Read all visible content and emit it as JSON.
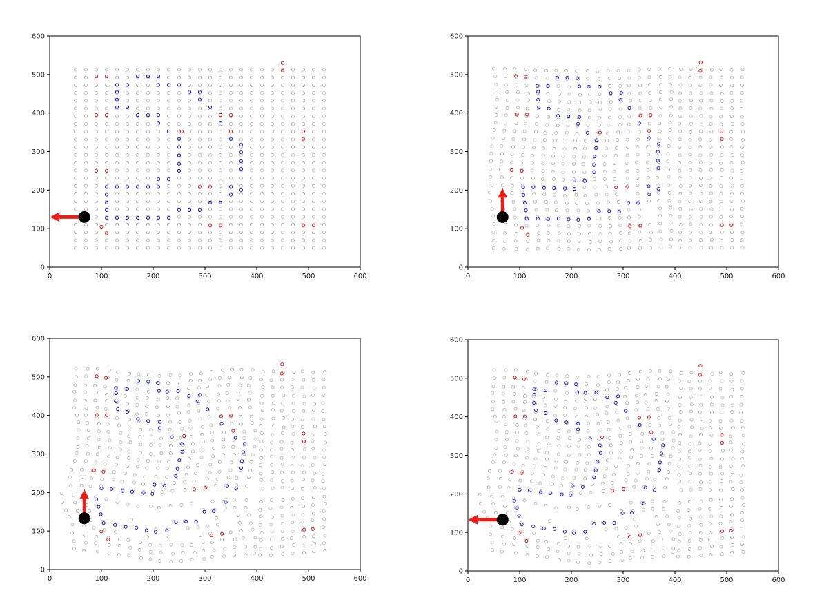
{
  "chart_data": [
    {
      "type": "scatter",
      "xlim": [
        0,
        600
      ],
      "ylim": [
        0,
        600
      ],
      "xticks": [
        "0",
        "100",
        "200",
        "300",
        "400",
        "500",
        "600"
      ],
      "yticks": [
        "0",
        "100",
        "200",
        "300",
        "400",
        "500",
        "600"
      ],
      "grid": false,
      "colors": {
        "background_points": "#b4b4b4",
        "blue_points": "#1f1fd6",
        "red_points": "#e02020",
        "robot": "#000000",
        "arrow": "#e8201c"
      },
      "robot": {
        "x": 67,
        "y": 130,
        "heading": "left"
      },
      "warp": 0,
      "red_points": [
        [
          90,
          495
        ],
        [
          110,
          495
        ],
        [
          90,
          395
        ],
        [
          110,
          395
        ],
        [
          90,
          250
        ],
        [
          110,
          250
        ],
        [
          100,
          105
        ],
        [
          110,
          88
        ],
        [
          255,
          352
        ],
        [
          290,
          208
        ],
        [
          310,
          208
        ],
        [
          310,
          108
        ],
        [
          330,
          108
        ],
        [
          330,
          395
        ],
        [
          350,
          395
        ],
        [
          350,
          352
        ],
        [
          450,
          530
        ],
        [
          450,
          510
        ],
        [
          490,
          352
        ],
        [
          490,
          333
        ],
        [
          490,
          108
        ],
        [
          510,
          108
        ]
      ],
      "blue_points": [
        [
          130,
          473
        ],
        [
          150,
          473
        ],
        [
          130,
          455
        ],
        [
          130,
          435
        ],
        [
          130,
          415
        ],
        [
          150,
          415
        ],
        [
          170,
          495
        ],
        [
          190,
          495
        ],
        [
          210,
          495
        ],
        [
          210,
          473
        ],
        [
          230,
          473
        ],
        [
          250,
          473
        ],
        [
          270,
          455
        ],
        [
          290,
          455
        ],
        [
          290,
          435
        ],
        [
          310,
          415
        ],
        [
          330,
          375
        ],
        [
          170,
          395
        ],
        [
          190,
          395
        ],
        [
          210,
          395
        ],
        [
          210,
          375
        ],
        [
          230,
          352
        ],
        [
          250,
          333
        ],
        [
          250,
          312
        ],
        [
          250,
          290
        ],
        [
          250,
          268
        ],
        [
          250,
          250
        ],
        [
          230,
          228
        ],
        [
          210,
          228
        ],
        [
          210,
          208
        ],
        [
          190,
          208
        ],
        [
          170,
          208
        ],
        [
          150,
          208
        ],
        [
          130,
          208
        ],
        [
          110,
          208
        ],
        [
          110,
          188
        ],
        [
          110,
          168
        ],
        [
          110,
          148
        ],
        [
          110,
          128
        ],
        [
          130,
          128
        ],
        [
          150,
          128
        ],
        [
          170,
          128
        ],
        [
          190,
          128
        ],
        [
          210,
          128
        ],
        [
          230,
          128
        ],
        [
          250,
          148
        ],
        [
          270,
          148
        ],
        [
          290,
          148
        ],
        [
          310,
          168
        ],
        [
          330,
          168
        ],
        [
          350,
          188
        ],
        [
          350,
          208
        ],
        [
          350,
          333
        ],
        [
          370,
          318
        ],
        [
          370,
          298
        ],
        [
          370,
          275
        ],
        [
          370,
          255
        ],
        [
          370,
          200
        ]
      ]
    },
    {
      "type": "scatter",
      "xlim": [
        0,
        600
      ],
      "ylim": [
        0,
        600
      ],
      "xticks": [
        "0",
        "100",
        "200",
        "300",
        "400",
        "500",
        "600"
      ],
      "yticks": [
        "0",
        "100",
        "200",
        "300",
        "400",
        "500",
        "600"
      ],
      "grid": false,
      "colors": {
        "background_points": "#b4b4b4",
        "blue_points": "#1f1fd6",
        "red_points": "#e02020",
        "robot": "#000000",
        "arrow": "#e8201c"
      },
      "robot": {
        "x": 67,
        "y": 130,
        "heading": "up"
      },
      "warp": 1,
      "red_points": [
        [
          90,
          495
        ],
        [
          110,
          495
        ],
        [
          90,
          395
        ],
        [
          110,
          395
        ],
        [
          90,
          250
        ],
        [
          110,
          250
        ],
        [
          100,
          105
        ],
        [
          110,
          88
        ],
        [
          255,
          352
        ],
        [
          290,
          208
        ],
        [
          310,
          208
        ],
        [
          310,
          108
        ],
        [
          330,
          108
        ],
        [
          330,
          395
        ],
        [
          350,
          395
        ],
        [
          350,
          352
        ],
        [
          450,
          530
        ],
        [
          450,
          510
        ],
        [
          490,
          352
        ],
        [
          490,
          333
        ],
        [
          490,
          108
        ],
        [
          510,
          108
        ]
      ],
      "blue_points": [
        [
          130,
          473
        ],
        [
          150,
          473
        ],
        [
          130,
          455
        ],
        [
          130,
          435
        ],
        [
          130,
          415
        ],
        [
          150,
          415
        ],
        [
          170,
          495
        ],
        [
          190,
          495
        ],
        [
          210,
          495
        ],
        [
          210,
          473
        ],
        [
          230,
          473
        ],
        [
          250,
          473
        ],
        [
          270,
          455
        ],
        [
          290,
          455
        ],
        [
          290,
          435
        ],
        [
          310,
          415
        ],
        [
          330,
          375
        ],
        [
          170,
          395
        ],
        [
          190,
          395
        ],
        [
          210,
          395
        ],
        [
          210,
          375
        ],
        [
          230,
          352
        ],
        [
          250,
          333
        ],
        [
          250,
          312
        ],
        [
          250,
          290
        ],
        [
          250,
          268
        ],
        [
          250,
          250
        ],
        [
          230,
          228
        ],
        [
          210,
          228
        ],
        [
          210,
          208
        ],
        [
          190,
          208
        ],
        [
          170,
          208
        ],
        [
          150,
          208
        ],
        [
          130,
          208
        ],
        [
          110,
          208
        ],
        [
          110,
          188
        ],
        [
          110,
          168
        ],
        [
          110,
          148
        ],
        [
          110,
          128
        ],
        [
          130,
          128
        ],
        [
          150,
          128
        ],
        [
          170,
          128
        ],
        [
          190,
          128
        ],
        [
          210,
          128
        ],
        [
          230,
          128
        ],
        [
          250,
          148
        ],
        [
          270,
          148
        ],
        [
          290,
          148
        ],
        [
          310,
          168
        ],
        [
          330,
          168
        ],
        [
          350,
          188
        ],
        [
          350,
          208
        ],
        [
          350,
          333
        ],
        [
          370,
          318
        ],
        [
          370,
          298
        ],
        [
          370,
          275
        ],
        [
          370,
          255
        ],
        [
          370,
          200
        ]
      ]
    },
    {
      "type": "scatter",
      "xlim": [
        0,
        600
      ],
      "ylim": [
        0,
        600
      ],
      "xticks": [
        "0",
        "100",
        "200",
        "300",
        "400",
        "500",
        "600"
      ],
      "yticks": [
        "0",
        "100",
        "200",
        "300",
        "400",
        "500",
        "600"
      ],
      "grid": false,
      "colors": {
        "background_points": "#b4b4b4",
        "blue_points": "#1f1fd6",
        "red_points": "#e02020",
        "robot": "#000000",
        "arrow": "#e8201c"
      },
      "robot": {
        "x": 67,
        "y": 133,
        "heading": "up"
      },
      "warp": 2,
      "red_points": [
        [
          90,
          495
        ],
        [
          110,
          495
        ],
        [
          90,
          395
        ],
        [
          110,
          395
        ],
        [
          90,
          250
        ],
        [
          110,
          250
        ],
        [
          100,
          105
        ],
        [
          110,
          88
        ],
        [
          255,
          352
        ],
        [
          290,
          208
        ],
        [
          310,
          208
        ],
        [
          310,
          108
        ],
        [
          330,
          108
        ],
        [
          330,
          395
        ],
        [
          350,
          395
        ],
        [
          350,
          352
        ],
        [
          450,
          530
        ],
        [
          450,
          510
        ],
        [
          490,
          352
        ],
        [
          490,
          333
        ],
        [
          490,
          108
        ],
        [
          510,
          108
        ]
      ],
      "blue_points": [
        [
          130,
          473
        ],
        [
          150,
          473
        ],
        [
          130,
          455
        ],
        [
          130,
          435
        ],
        [
          130,
          415
        ],
        [
          150,
          415
        ],
        [
          170,
          495
        ],
        [
          190,
          495
        ],
        [
          210,
          495
        ],
        [
          210,
          473
        ],
        [
          230,
          473
        ],
        [
          250,
          473
        ],
        [
          270,
          455
        ],
        [
          290,
          455
        ],
        [
          290,
          435
        ],
        [
          310,
          415
        ],
        [
          330,
          375
        ],
        [
          170,
          395
        ],
        [
          190,
          395
        ],
        [
          210,
          395
        ],
        [
          210,
          375
        ],
        [
          230,
          352
        ],
        [
          250,
          333
        ],
        [
          250,
          312
        ],
        [
          250,
          290
        ],
        [
          250,
          268
        ],
        [
          250,
          250
        ],
        [
          230,
          228
        ],
        [
          210,
          228
        ],
        [
          210,
          208
        ],
        [
          190,
          208
        ],
        [
          170,
          208
        ],
        [
          150,
          208
        ],
        [
          130,
          208
        ],
        [
          110,
          208
        ],
        [
          110,
          188
        ],
        [
          110,
          168
        ],
        [
          110,
          148
        ],
        [
          110,
          128
        ],
        [
          130,
          128
        ],
        [
          150,
          128
        ],
        [
          170,
          128
        ],
        [
          190,
          128
        ],
        [
          210,
          128
        ],
        [
          230,
          128
        ],
        [
          250,
          148
        ],
        [
          270,
          148
        ],
        [
          290,
          148
        ],
        [
          310,
          168
        ],
        [
          330,
          168
        ],
        [
          350,
          188
        ],
        [
          350,
          208
        ],
        [
          350,
          333
        ],
        [
          370,
          318
        ],
        [
          370,
          298
        ],
        [
          370,
          275
        ],
        [
          370,
          255
        ],
        [
          370,
          200
        ]
      ]
    },
    {
      "type": "scatter",
      "xlim": [
        0,
        600
      ],
      "ylim": [
        0,
        600
      ],
      "xticks": [
        "0",
        "100",
        "200",
        "300",
        "400",
        "500",
        "600"
      ],
      "yticks": [
        "0",
        "100",
        "200",
        "300",
        "400",
        "500",
        "600"
      ],
      "grid": false,
      "colors": {
        "background_points": "#b4b4b4",
        "blue_points": "#1f1fd6",
        "red_points": "#e02020",
        "robot": "#000000",
        "arrow": "#e8201c"
      },
      "robot": {
        "x": 67,
        "y": 133,
        "heading": "left"
      },
      "warp": 2,
      "red_points": [
        [
          90,
          495
        ],
        [
          110,
          495
        ],
        [
          90,
          395
        ],
        [
          110,
          395
        ],
        [
          90,
          250
        ],
        [
          110,
          250
        ],
        [
          100,
          105
        ],
        [
          110,
          88
        ],
        [
          255,
          352
        ],
        [
          290,
          208
        ],
        [
          310,
          208
        ],
        [
          310,
          108
        ],
        [
          330,
          108
        ],
        [
          330,
          395
        ],
        [
          350,
          395
        ],
        [
          350,
          352
        ],
        [
          450,
          530
        ],
        [
          450,
          510
        ],
        [
          490,
          352
        ],
        [
          490,
          333
        ],
        [
          490,
          108
        ],
        [
          510,
          108
        ]
      ],
      "blue_points": [
        [
          130,
          473
        ],
        [
          150,
          473
        ],
        [
          130,
          455
        ],
        [
          130,
          435
        ],
        [
          130,
          415
        ],
        [
          150,
          415
        ],
        [
          170,
          495
        ],
        [
          190,
          495
        ],
        [
          210,
          495
        ],
        [
          210,
          473
        ],
        [
          230,
          473
        ],
        [
          250,
          473
        ],
        [
          270,
          455
        ],
        [
          290,
          455
        ],
        [
          290,
          435
        ],
        [
          310,
          415
        ],
        [
          330,
          375
        ],
        [
          170,
          395
        ],
        [
          190,
          395
        ],
        [
          210,
          395
        ],
        [
          210,
          375
        ],
        [
          230,
          352
        ],
        [
          250,
          333
        ],
        [
          250,
          312
        ],
        [
          250,
          290
        ],
        [
          250,
          268
        ],
        [
          250,
          250
        ],
        [
          230,
          228
        ],
        [
          210,
          228
        ],
        [
          210,
          208
        ],
        [
          190,
          208
        ],
        [
          170,
          208
        ],
        [
          150,
          208
        ],
        [
          130,
          208
        ],
        [
          110,
          208
        ],
        [
          110,
          188
        ],
        [
          110,
          168
        ],
        [
          110,
          148
        ],
        [
          110,
          128
        ],
        [
          130,
          128
        ],
        [
          150,
          128
        ],
        [
          170,
          128
        ],
        [
          190,
          128
        ],
        [
          210,
          128
        ],
        [
          230,
          128
        ],
        [
          250,
          148
        ],
        [
          270,
          148
        ],
        [
          290,
          148
        ],
        [
          310,
          168
        ],
        [
          330,
          168
        ],
        [
          350,
          188
        ],
        [
          350,
          208
        ],
        [
          350,
          333
        ],
        [
          370,
          318
        ],
        [
          370,
          298
        ],
        [
          370,
          275
        ],
        [
          370,
          255
        ],
        [
          370,
          200
        ]
      ]
    }
  ]
}
